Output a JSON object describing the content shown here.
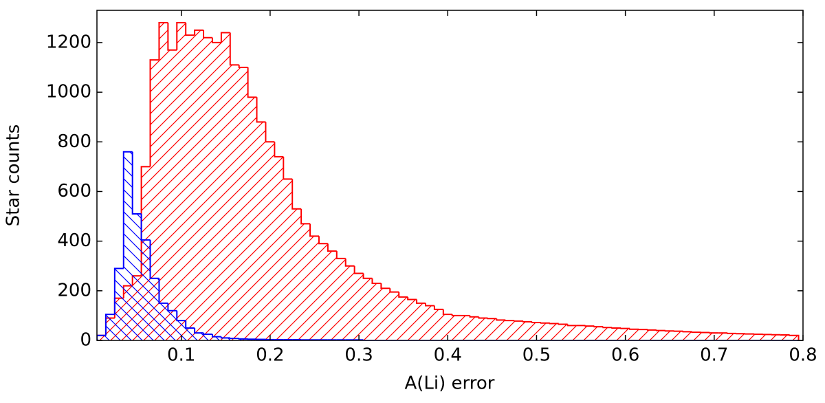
{
  "chart_data": {
    "type": "histogram",
    "xlabel": "A(Li) error",
    "ylabel": "Star counts",
    "bins": [
      0.005,
      0.015,
      0.025,
      0.035,
      0.045,
      0.055,
      0.065,
      0.075,
      0.085,
      0.095,
      0.105,
      0.115,
      0.125,
      0.135,
      0.145,
      0.155,
      0.165,
      0.175,
      0.185,
      0.195,
      0.205,
      0.215,
      0.225,
      0.235,
      0.245,
      0.255,
      0.265,
      0.275,
      0.285,
      0.295,
      0.305,
      0.315,
      0.325,
      0.335,
      0.345,
      0.355,
      0.365,
      0.375,
      0.385,
      0.395,
      0.405,
      0.415,
      0.425,
      0.435,
      0.445,
      0.455,
      0.465,
      0.475,
      0.485,
      0.495,
      0.505,
      0.515,
      0.525,
      0.535,
      0.545,
      0.555,
      0.565,
      0.575,
      0.585,
      0.595,
      0.605,
      0.615,
      0.625,
      0.635,
      0.645,
      0.655,
      0.665,
      0.675,
      0.685,
      0.695,
      0.705,
      0.715,
      0.725,
      0.735,
      0.745,
      0.755,
      0.765,
      0.775,
      0.785,
      0.795
    ],
    "series": [
      {
        "color": "#ff0000",
        "hatch": "/",
        "values": [
          20,
          90,
          170,
          220,
          260,
          700,
          1130,
          1280,
          1170,
          1280,
          1230,
          1250,
          1220,
          1200,
          1240,
          1110,
          1100,
          980,
          880,
          800,
          740,
          650,
          530,
          470,
          420,
          390,
          360,
          330,
          300,
          270,
          250,
          230,
          210,
          195,
          175,
          165,
          150,
          140,
          125,
          105,
          100,
          100,
          95,
          90,
          88,
          82,
          80,
          78,
          75,
          72,
          70,
          68,
          65,
          60,
          60,
          58,
          55,
          52,
          50,
          48,
          45,
          44,
          42,
          40,
          38,
          37,
          35,
          33,
          32,
          30,
          30,
          28,
          27,
          26,
          25,
          24,
          23,
          22,
          20
        ]
      },
      {
        "color": "#0000ff",
        "hatch": "\\",
        "values": [
          20,
          105,
          290,
          760,
          510,
          405,
          250,
          150,
          120,
          80,
          50,
          30,
          25,
          15,
          10,
          8,
          6,
          5,
          4,
          3,
          3,
          3,
          3,
          2,
          2,
          2,
          2,
          2,
          2,
          2,
          0,
          0,
          0,
          0,
          0,
          0,
          0,
          0,
          0,
          0,
          0,
          0,
          0,
          0,
          0,
          0,
          0,
          0,
          0,
          0,
          0,
          0,
          0,
          0,
          0,
          0,
          0,
          0,
          0,
          0,
          0,
          0,
          0,
          0,
          0,
          0,
          0,
          0,
          0,
          0,
          0,
          0,
          0,
          0,
          0,
          0,
          0,
          0,
          0
        ]
      }
    ],
    "xlim": [
      0.005,
      0.8
    ],
    "ylim": [
      0,
      1330
    ],
    "xticks": [
      0.1,
      0.2,
      0.3,
      0.4,
      0.5,
      0.6,
      0.7,
      0.8
    ],
    "yticks": [
      0,
      200,
      400,
      600,
      800,
      1000,
      1200
    ]
  }
}
